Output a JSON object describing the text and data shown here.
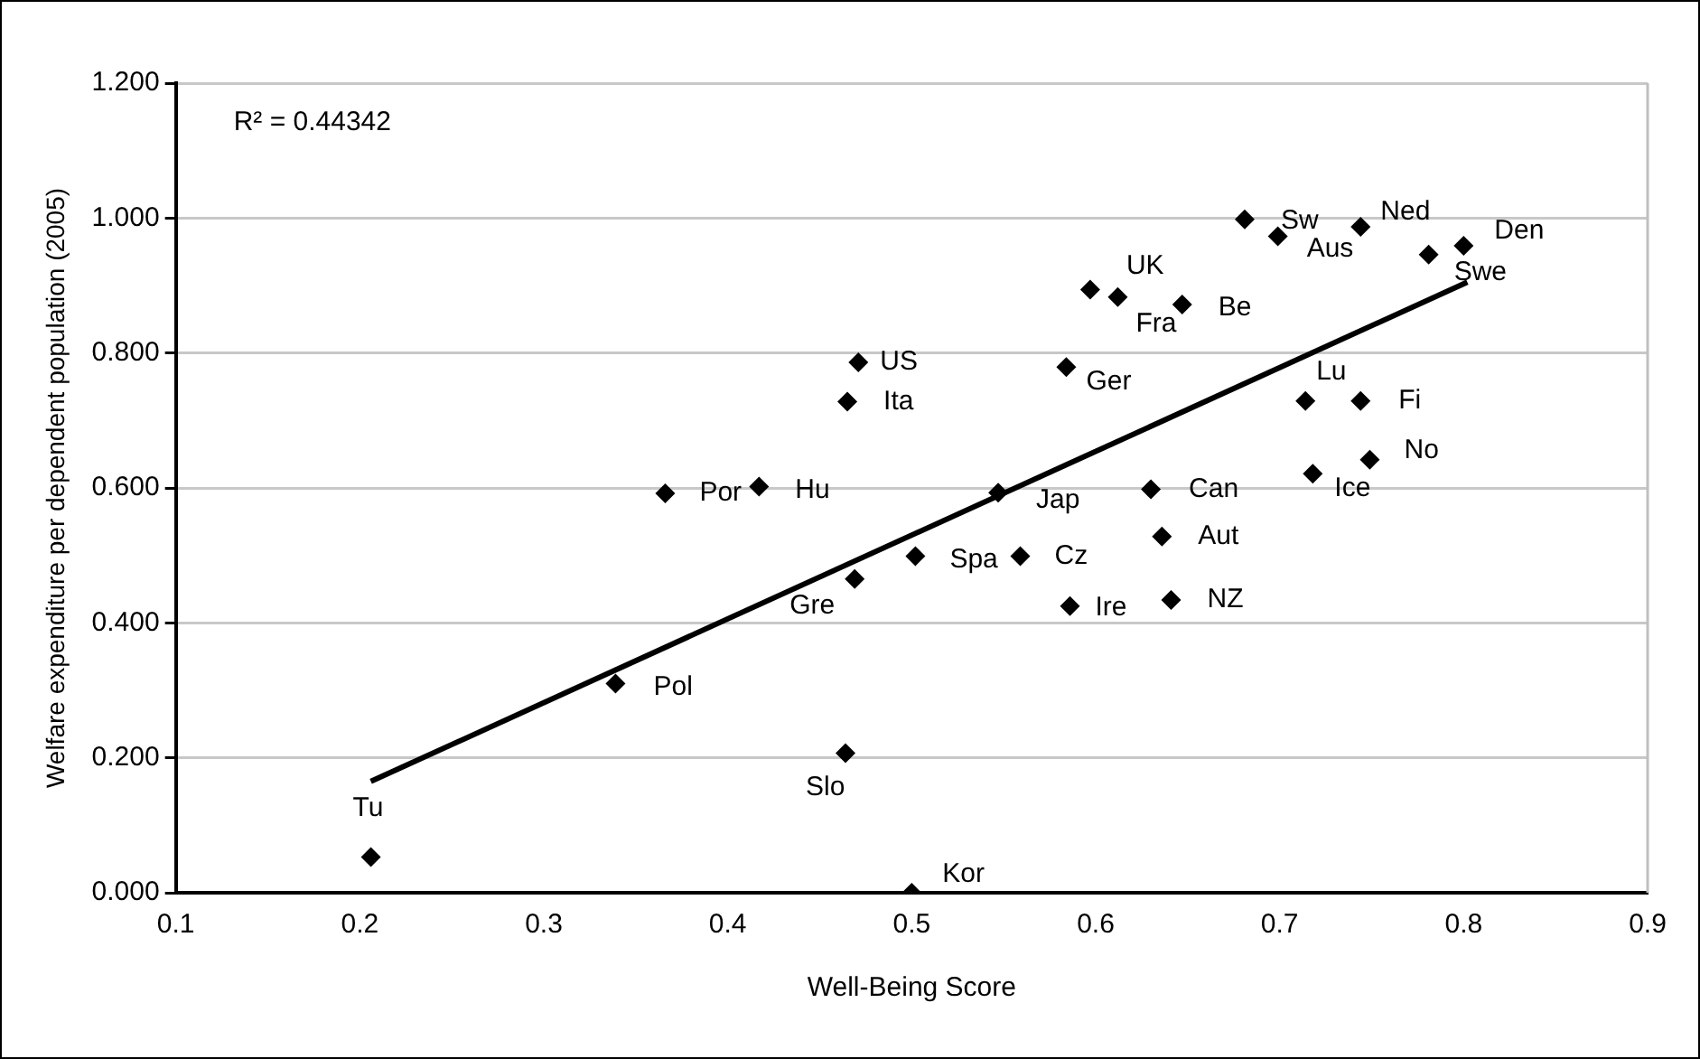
{
  "chart_data": {
    "type": "scatter",
    "xlabel": "Well-Being Score",
    "ylabel": "Welfare expenditure per dependent population (2005)",
    "xlim": [
      0.1,
      0.9
    ],
    "xticks": [
      0.1,
      0.2,
      0.3,
      0.4,
      0.5,
      0.6,
      0.7,
      0.8,
      0.9
    ],
    "ylim": [
      0,
      1.2
    ],
    "yticks": [
      {
        "value": 0,
        "label": "0.000"
      },
      {
        "value": 0.2,
        "label": "0.200"
      },
      {
        "value": 0.4,
        "label": "0.400"
      },
      {
        "value": 0.6,
        "label": "0.600"
      },
      {
        "value": 0.8,
        "label": "0.800"
      },
      {
        "value": 1.0,
        "label": "1.000"
      },
      {
        "value": 1.2,
        "label": "1.200"
      }
    ],
    "grid": "y",
    "legend": false,
    "series": [
      {
        "color": "#000000",
        "marker": "diamond",
        "x": [
          0.366,
          0.417,
          0.471,
          0.465,
          0.681,
          0.699,
          0.744,
          0.781,
          0.8,
          0.597,
          0.612,
          0.647,
          0.584,
          0.714,
          0.744,
          0.749,
          0.718,
          0.547,
          0.63,
          0.636,
          0.502,
          0.559,
          0.586,
          0.641,
          0.5,
          0.469,
          0.339,
          0.464,
          0.206
        ],
        "values": [
          0.592,
          0.602,
          0.786,
          0.728,
          0.998,
          0.973,
          0.987,
          0.946,
          0.959,
          0.894,
          0.883,
          0.872,
          0.779,
          0.729,
          0.729,
          0.642,
          0.621,
          0.593,
          0.598,
          0.528,
          0.499,
          0.499,
          0.425,
          0.434,
          0.0,
          0.465,
          0.31,
          0.207,
          0.053
        ]
      },
      {
        "type": "line",
        "color": "#000000",
        "marker": "none",
        "line_style": "solid",
        "x": [
          0.206,
          0.802
        ],
        "values": [
          0.165,
          0.905
        ]
      }
    ],
    "annotations": [
      "R² = 0.44342",
      {
        "text": "Por",
        "x": 0.366,
        "y": 0.592
      },
      {
        "text": "Hu",
        "x": 0.417,
        "y": 0.602
      },
      {
        "text": "US",
        "x": 0.471,
        "y": 0.786
      },
      {
        "text": "Ita",
        "x": 0.465,
        "y": 0.728
      },
      {
        "text": "Sw",
        "x": 0.681,
        "y": 0.998
      },
      {
        "text": "Aus",
        "x": 0.699,
        "y": 0.973
      },
      {
        "text": "Ned",
        "x": 0.744,
        "y": 0.987
      },
      {
        "text": "Swe",
        "x": 0.781,
        "y": 0.946
      },
      {
        "text": "Den",
        "x": 0.8,
        "y": 0.959
      },
      {
        "text": "UK",
        "x": 0.597,
        "y": 0.894
      },
      {
        "text": "Fra",
        "x": 0.612,
        "y": 0.883
      },
      {
        "text": "Be",
        "x": 0.647,
        "y": 0.872
      },
      {
        "text": "Ger",
        "x": 0.584,
        "y": 0.779
      },
      {
        "text": "Lu",
        "x": 0.714,
        "y": 0.729
      },
      {
        "text": "Fi",
        "x": 0.744,
        "y": 0.729
      },
      {
        "text": "No",
        "x": 0.749,
        "y": 0.642
      },
      {
        "text": "Ice",
        "x": 0.718,
        "y": 0.621
      },
      {
        "text": "Jap",
        "x": 0.547,
        "y": 0.593
      },
      {
        "text": "Can",
        "x": 0.63,
        "y": 0.598
      },
      {
        "text": "Aut",
        "x": 0.636,
        "y": 0.528
      },
      {
        "text": "Spa",
        "x": 0.502,
        "y": 0.499
      },
      {
        "text": "Cz",
        "x": 0.559,
        "y": 0.499
      },
      {
        "text": "Ire",
        "x": 0.586,
        "y": 0.425
      },
      {
        "text": "NZ",
        "x": 0.641,
        "y": 0.434
      },
      {
        "text": "Kor",
        "x": 0.5,
        "y": 0.0
      },
      {
        "text": "Gre",
        "x": 0.469,
        "y": 0.465
      },
      {
        "text": "Pol",
        "x": 0.339,
        "y": 0.31
      },
      {
        "text": "Slo",
        "x": 0.464,
        "y": 0.207
      },
      {
        "text": "Tu",
        "x": 0.206,
        "y": 0.053
      }
    ]
  }
}
